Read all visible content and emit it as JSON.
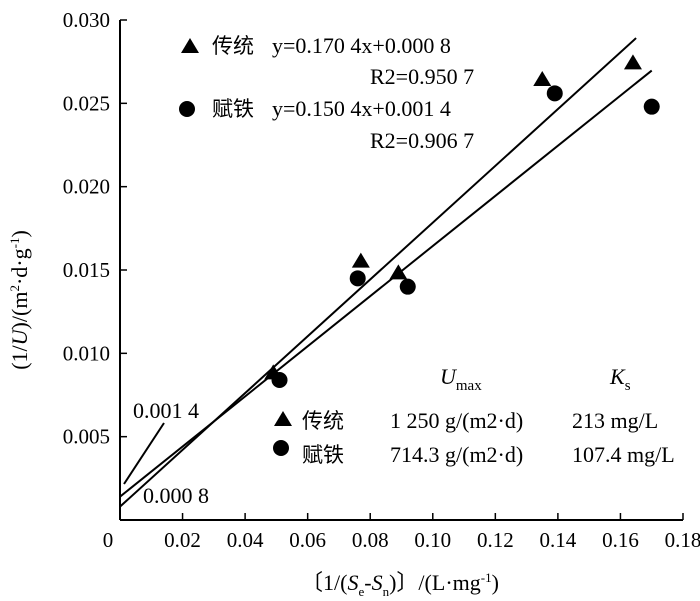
{
  "chart_data": {
    "type": "scatter",
    "xlabel": "〔1/(Se-Sn)〕/(L·mg-1)",
    "ylabel": "(1/U)/(m2·d·g-1)",
    "xlim": [
      0,
      0.18
    ],
    "ylim": [
      0,
      0.03
    ],
    "x_ticks": [
      "0",
      "0.02",
      "0.04",
      "0.06",
      "0.08",
      "0.10",
      "0.12",
      "0.14",
      "0.16",
      "0.18"
    ],
    "y_ticks": [
      "0.005",
      "0.010",
      "0.015",
      "0.020",
      "0.025",
      "0.030"
    ],
    "grid": false,
    "legend_position": "top-left",
    "series": [
      {
        "name": "传统",
        "marker": "triangle",
        "points": [
          [
            0.049,
            0.0088
          ],
          [
            0.077,
            0.0155
          ],
          [
            0.089,
            0.0148
          ],
          [
            0.135,
            0.0264
          ],
          [
            0.164,
            0.0274
          ]
        ],
        "equation": "y=0.170 4x+0.000 8",
        "r2": "R2=0.950 7",
        "slope": 0.1704,
        "intercept": 0.0008,
        "U_max": "1 250 g/(m2·d)",
        "K_s": "213 mg/L"
      },
      {
        "name": "赋铁",
        "marker": "circle",
        "points": [
          [
            0.051,
            0.0084
          ],
          [
            0.076,
            0.0145
          ],
          [
            0.092,
            0.014
          ],
          [
            0.139,
            0.0256
          ],
          [
            0.17,
            0.0248
          ]
        ],
        "equation": "y=0.150 4x+0.001 4",
        "r2": "R2=0.906 7",
        "slope": 0.1504,
        "intercept": 0.0014,
        "U_max": "714.3 g/(m2·d)",
        "K_s": "107.4 mg/L"
      }
    ],
    "fit_x_end": [
      0.165,
      0.17
    ],
    "intercept_labels": [
      "0.001 4",
      "0.000 8"
    ],
    "table_headers": [
      "Umax",
      "Ks"
    ]
  },
  "colors": {
    "axis": "#000000",
    "marker": "#000000"
  }
}
